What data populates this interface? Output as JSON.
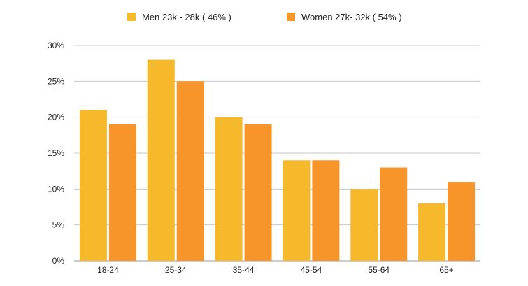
{
  "chart_data": {
    "type": "bar",
    "categories": [
      "18-24",
      "25-34",
      "35-44",
      "45-54",
      "55-64",
      "65+"
    ],
    "series": [
      {
        "name": "Men 23k - 28k ( 46%  )",
        "color": "#f6b92b",
        "values": [
          21,
          28,
          20,
          14,
          10,
          8
        ]
      },
      {
        "name": "Women 27k- 32k  ( 54% )",
        "color": "#f7942a",
        "values": [
          19,
          25,
          19,
          14,
          13,
          11
        ]
      }
    ],
    "y_ticks": [
      "0%",
      "5%",
      "10%",
      "15%",
      "20%",
      "25%",
      "30%"
    ],
    "ylim": [
      0,
      30
    ],
    "grid": true,
    "legend_position": "top",
    "title": "",
    "xlabel": "",
    "ylabel": ""
  }
}
